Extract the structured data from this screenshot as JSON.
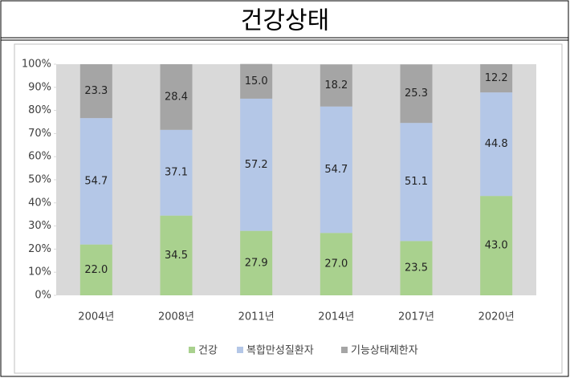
{
  "chart_data": {
    "type": "stacked-bar",
    "title": "건강상태",
    "categories": [
      "2004년",
      "2008년",
      "2011년",
      "2014년",
      "2017년",
      "2020년"
    ],
    "series": [
      {
        "name": "건강",
        "color": "#a9d18e",
        "values": [
          22.0,
          34.5,
          27.9,
          27.0,
          23.5,
          43.0
        ],
        "value_labels": [
          "22.0",
          "34.5",
          "27.9",
          "27.0",
          "23.5",
          "43.0"
        ]
      },
      {
        "name": "복합만성질환자",
        "color": "#b4c7e7",
        "values": [
          54.7,
          37.1,
          57.2,
          54.7,
          51.1,
          44.8
        ],
        "value_labels": [
          "54.7",
          "37.1",
          "57.2",
          "54.7",
          "51.1",
          "44.8"
        ]
      },
      {
        "name": "기능상태제한자",
        "color": "#a5a5a5",
        "values": [
          23.3,
          28.4,
          15.0,
          18.2,
          25.3,
          12.2
        ],
        "value_labels": [
          "23.3",
          "28.4",
          "15.0",
          "18.2",
          "25.3",
          "12.2"
        ]
      }
    ],
    "ylim": [
      0,
      100
    ],
    "yticks": [
      {
        "value": 0,
        "label": "0%"
      },
      {
        "value": 10,
        "label": "10%"
      },
      {
        "value": 20,
        "label": "20%"
      },
      {
        "value": 30,
        "label": "30%"
      },
      {
        "value": 40,
        "label": "40%"
      },
      {
        "value": 50,
        "label": "50%"
      },
      {
        "value": 60,
        "label": "60%"
      },
      {
        "value": 70,
        "label": "70%"
      },
      {
        "value": 80,
        "label": "80%"
      },
      {
        "value": 90,
        "label": "90%"
      },
      {
        "value": 100,
        "label": "100%"
      }
    ],
    "legend": "bottom"
  }
}
